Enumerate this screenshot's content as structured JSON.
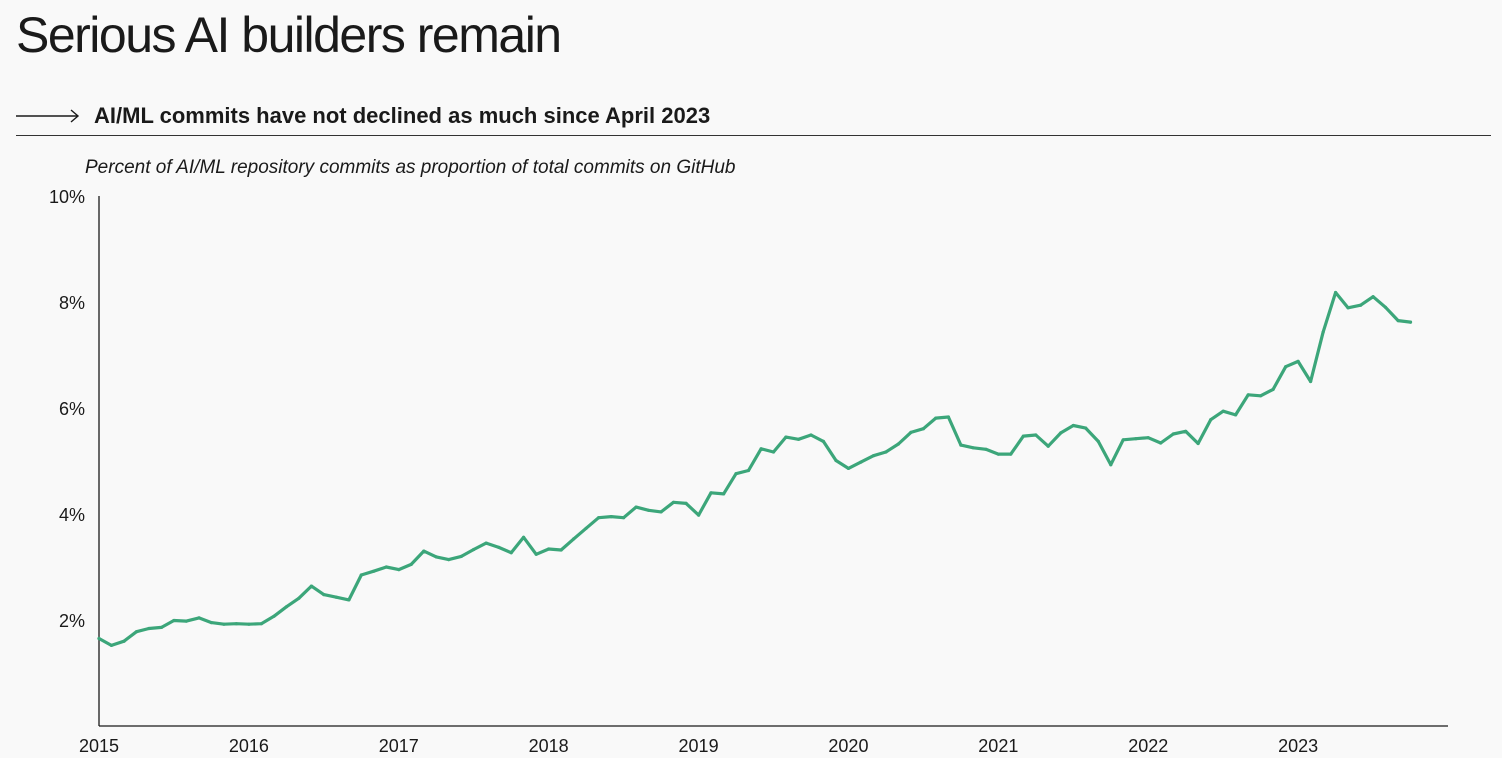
{
  "header": {
    "title": "Serious AI builders remain",
    "subtitle": "AI/ML commits have not declined as much since April 2023"
  },
  "chart_data": {
    "type": "line",
    "title": "Percent of AI/ML repository commits as proportion of total commits on GitHub",
    "xlabel": "",
    "ylabel": "",
    "xlim": [
      2015,
      2024
    ],
    "ylim": [
      0,
      10
    ],
    "x_ticks": [
      2015,
      2016,
      2017,
      2018,
      2019,
      2020,
      2021,
      2022,
      2023
    ],
    "x_tick_labels": [
      "2015",
      "2016",
      "2017",
      "2018",
      "2019",
      "2020",
      "2021",
      "2022",
      "2023"
    ],
    "y_ticks": [
      2,
      4,
      6,
      8,
      10
    ],
    "y_tick_labels": [
      "2%",
      "4%",
      "6%",
      "8%",
      "10%"
    ],
    "grid": false,
    "line_color": "#3ca67a",
    "series": [
      {
        "x": [
          2015.0,
          2015.083,
          2015.167,
          2015.25,
          2015.333,
          2015.417,
          2015.5,
          2015.583,
          2015.667,
          2015.75,
          2015.833,
          2015.917,
          2016.0,
          2016.083,
          2016.167,
          2016.25,
          2016.333,
          2016.417,
          2016.5,
          2016.583,
          2016.667,
          2016.75,
          2016.833,
          2016.917,
          2017.0,
          2017.083,
          2017.167,
          2017.25,
          2017.333,
          2017.417,
          2017.5,
          2017.583,
          2017.667,
          2017.75,
          2017.833,
          2017.917,
          2018.0,
          2018.083,
          2018.167,
          2018.25,
          2018.333,
          2018.417,
          2018.5,
          2018.583,
          2018.667,
          2018.75,
          2018.833,
          2018.917,
          2019.0,
          2019.083,
          2019.167,
          2019.25,
          2019.333,
          2019.417,
          2019.5,
          2019.583,
          2019.667,
          2019.75,
          2019.833,
          2019.917,
          2020.0,
          2020.083,
          2020.167,
          2020.25,
          2020.333,
          2020.417,
          2020.5,
          2020.583,
          2020.667,
          2020.75,
          2020.833,
          2020.917,
          2021.0,
          2021.083,
          2021.167,
          2021.25,
          2021.333,
          2021.417,
          2021.5,
          2021.583,
          2021.667,
          2021.75,
          2021.833,
          2021.917,
          2022.0,
          2022.083,
          2022.167,
          2022.25,
          2022.333,
          2022.417,
          2022.5,
          2022.583,
          2022.667,
          2022.75,
          2022.833,
          2022.917,
          2023.0,
          2023.083,
          2023.167,
          2023.25,
          2023.333,
          2023.417,
          2023.5,
          2023.583,
          2023.667,
          2023.75
        ],
        "values": [
          1.65,
          1.52,
          1.6,
          1.78,
          1.84,
          1.86,
          1.99,
          1.98,
          2.04,
          1.95,
          1.92,
          1.93,
          1.92,
          1.93,
          2.07,
          2.25,
          2.41,
          2.64,
          2.48,
          2.43,
          2.38,
          2.85,
          2.92,
          3.0,
          2.95,
          3.05,
          3.3,
          3.19,
          3.14,
          3.2,
          3.33,
          3.45,
          3.37,
          3.27,
          3.56,
          3.24,
          3.34,
          3.32,
          3.53,
          3.73,
          3.93,
          3.95,
          3.93,
          4.13,
          4.07,
          4.04,
          4.22,
          4.2,
          3.98,
          4.4,
          4.38,
          4.76,
          4.82,
          5.23,
          5.17,
          5.45,
          5.41,
          5.49,
          5.37,
          5.01,
          4.86,
          4.98,
          5.1,
          5.17,
          5.32,
          5.54,
          5.61,
          5.81,
          5.83,
          5.3,
          5.25,
          5.22,
          5.13,
          5.13,
          5.47,
          5.49,
          5.28,
          5.53,
          5.67,
          5.62,
          5.37,
          4.93,
          5.4,
          5.42,
          5.44,
          5.34,
          5.51,
          5.56,
          5.33,
          5.78,
          5.94,
          5.87,
          6.25,
          6.23,
          6.35,
          6.78,
          6.88,
          6.5,
          7.43,
          8.18,
          7.89,
          7.94,
          8.1,
          7.9,
          7.65,
          7.62
        ]
      }
    ]
  }
}
